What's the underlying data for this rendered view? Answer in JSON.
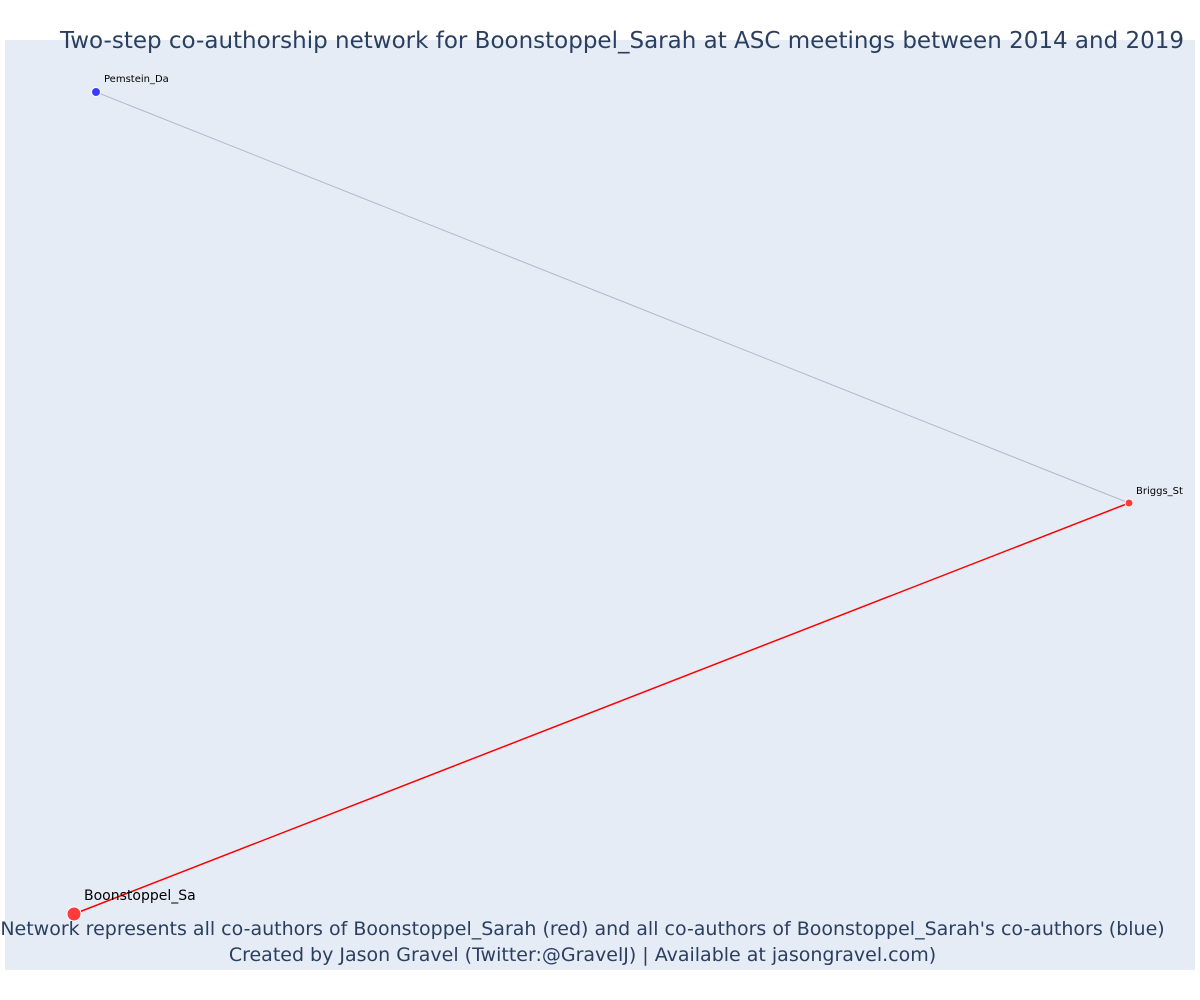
{
  "title": "Two-step co-authorship network for Boonstoppel_Sarah at ASC meetings between 2014 and 2019",
  "caption_lines": [
    "Network represents all co-authors of Boonstoppel_Sarah (red) and all co-authors of Boonstoppel_Sarah's co-authors (blue)",
    "Created by Jason Gravel (Twitter:@GravelJ) | Available at jasongravel.com)"
  ],
  "colors": {
    "background": "#e5ecf6",
    "text": "#2a3f5f",
    "red_node": "#ff3b3b",
    "blue_node": "#3b3bff",
    "red_edge": "#ff0000",
    "grey_edge": "#b4b8c8"
  },
  "network": {
    "nodes": [
      {
        "id": "focal",
        "label": "Boonstoppel_Sa",
        "group": "focal"
      },
      {
        "id": "briggs",
        "label": "Briggs_St",
        "group": "coauthor"
      },
      {
        "id": "pemstein",
        "label": "Pemstein_Da",
        "group": "second_step"
      }
    ],
    "edges": [
      {
        "source": "focal",
        "target": "briggs",
        "type": "direct"
      },
      {
        "source": "briggs",
        "target": "pemstein",
        "type": "indirect"
      }
    ]
  }
}
